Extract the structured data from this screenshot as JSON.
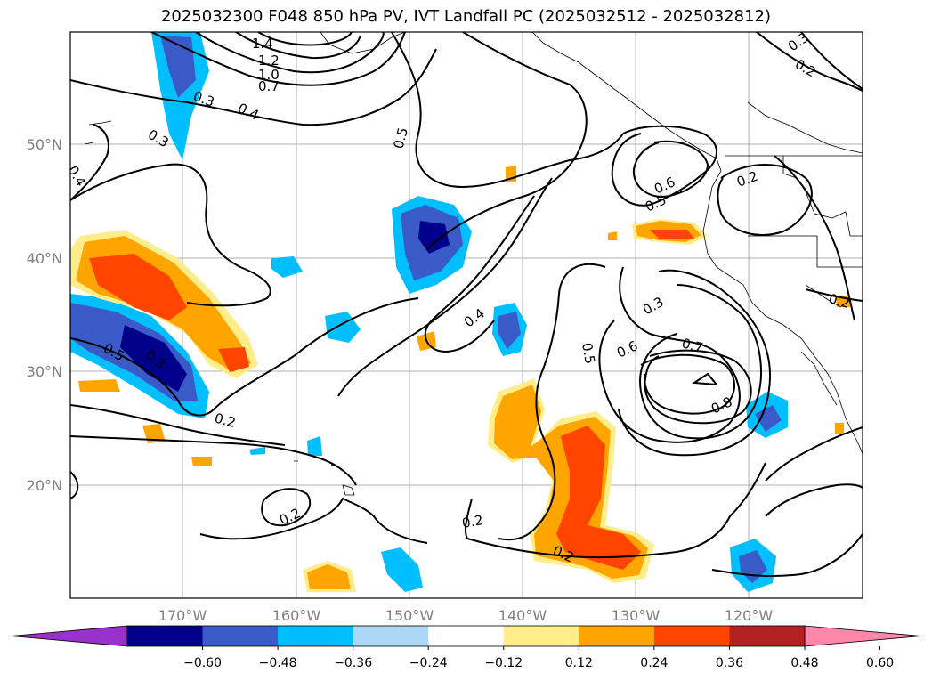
{
  "title": "2025032300 F048 850 hPa PV, IVT Landfall PC (2025032512 - 2025032812)",
  "lat_ticks": [
    "50°N",
    "40°N",
    "30°N",
    "20°N"
  ],
  "lon_ticks": [
    "170°W",
    "160°W",
    "150°W",
    "140°W",
    "130°W",
    "120°W"
  ],
  "colorbar": {
    "colors": [
      "#9932cc",
      "#00008b",
      "#3a5bc7",
      "#00bfff",
      "#add8f5",
      "#ffffff",
      "#ffec8b",
      "#ffa500",
      "#ff4500",
      "#b22222",
      "#ff88aa"
    ],
    "tick_labels": [
      "−0.60",
      "−0.48",
      "−0.36",
      "−0.24",
      "−0.12",
      "0.12",
      "0.24",
      "0.36",
      "0.48",
      "0.60"
    ]
  },
  "contour_labels": [
    "1.4",
    "1.2",
    "1.0",
    "0.7",
    "0.4",
    "0.3",
    "0.3",
    "0.4",
    "0.5",
    "0.6",
    "0.5",
    "0.2",
    "0.3",
    "0.2",
    "0.4",
    "0.5",
    "0.6",
    "0.7",
    "0.8",
    "0.3",
    "0.5",
    "0.3",
    "0.2",
    "0.2",
    "0.2",
    "0.2",
    "0.2"
  ]
}
